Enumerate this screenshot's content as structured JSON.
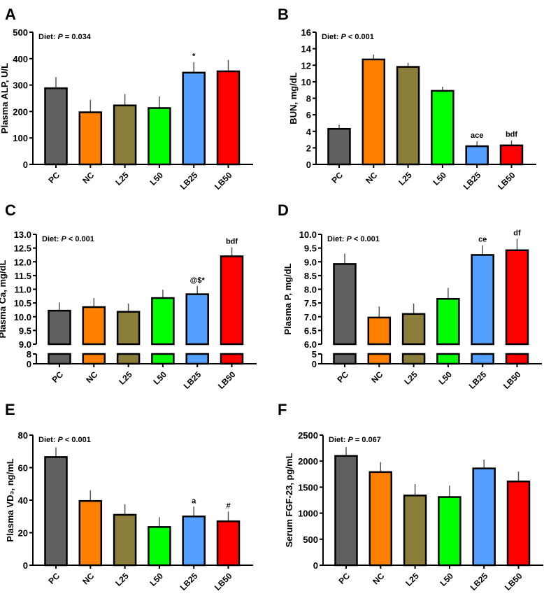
{
  "categories": [
    "PC",
    "NC",
    "L25",
    "L50",
    "LB25",
    "LB50"
  ],
  "colors": [
    "#606060",
    "#ff8000",
    "#8b7d3a",
    "#00ff00",
    "#55a0ff",
    "#ff0000"
  ],
  "chart_data": [
    {
      "type": "bar",
      "panel": "A",
      "ylabel": "Plasma ALP, U/L",
      "stat": {
        "prefix": "Diet:",
        "p": "P",
        "rest": "= 0.034"
      },
      "ylim": [
        0,
        500
      ],
      "yticks": [
        "0",
        "100",
        "200",
        "300",
        "400",
        "500"
      ],
      "values": [
        288,
        197,
        223,
        213,
        347,
        352
      ],
      "errors": [
        42,
        47,
        43,
        44,
        40,
        43
      ],
      "annotations": [
        "",
        "",
        "",
        "",
        "*",
        ""
      ]
    },
    {
      "type": "bar",
      "panel": "B",
      "ylabel": "BUN, mg/dL",
      "stat": {
        "prefix": "Diet:",
        "p": "P",
        "rest": "< 0.001"
      },
      "ylim": [
        0,
        16
      ],
      "yticks": [
        "0",
        "2",
        "4",
        "6",
        "8",
        "10",
        "12",
        "14",
        "16"
      ],
      "values": [
        4.3,
        12.7,
        11.8,
        8.9,
        2.2,
        2.3
      ],
      "errors": [
        0.5,
        0.6,
        0.5,
        0.5,
        0.6,
        0.6
      ],
      "annotations": [
        "",
        "",
        "",
        "",
        "ace",
        "bdf"
      ]
    },
    {
      "type": "bar",
      "panel": "C",
      "ylabel": "Plasma Ca, mg/dL",
      "stat": {
        "prefix": "Diet:",
        "p": "P",
        "rest": "< 0.001"
      },
      "ylim": [
        9,
        13
      ],
      "lower_ylim": [
        0,
        8
      ],
      "broken_axis": true,
      "yticks": [
        "9.0",
        "9.5",
        "10.0",
        "10.5",
        "11.0",
        "11.5",
        "12.0",
        "12.5",
        "13.0"
      ],
      "lower_yticks": [
        "0",
        "8"
      ],
      "values": [
        10.22,
        10.35,
        10.18,
        10.68,
        10.82,
        12.2
      ],
      "errors": [
        0.3,
        0.33,
        0.3,
        0.3,
        0.3,
        0.33
      ],
      "annotations": [
        "",
        "",
        "",
        "",
        "@$*",
        "bdf"
      ]
    },
    {
      "type": "bar",
      "panel": "D",
      "ylabel": "Plasma P, mg/dL",
      "stat": {
        "prefix": "Diet:",
        "p": "P",
        "rest": "< 0.001"
      },
      "ylim": [
        6,
        10
      ],
      "lower_ylim": [
        0,
        5
      ],
      "broken_axis": true,
      "yticks": [
        "6.0",
        "6.5",
        "7.0",
        "7.5",
        "8.0",
        "8.5",
        "9.0",
        "9.5",
        "10.0"
      ],
      "lower_yticks": [
        "0",
        "5"
      ],
      "values": [
        8.92,
        6.97,
        7.1,
        7.65,
        9.25,
        9.42
      ],
      "errors": [
        0.38,
        0.4,
        0.38,
        0.4,
        0.35,
        0.42
      ],
      "annotations": [
        "",
        "",
        "",
        "",
        "ce",
        "df"
      ]
    },
    {
      "type": "bar",
      "panel": "E",
      "ylabel": "Plasma VD₃, ng/mL",
      "stat": {
        "prefix": "Diet:",
        "p": "P",
        "rest": "< 0.001"
      },
      "ylim": [
        0,
        80
      ],
      "yticks": [
        "0",
        "20",
        "40",
        "60",
        "80"
      ],
      "values": [
        66.5,
        39.5,
        31,
        23.5,
        30,
        27
      ],
      "errors": [
        6,
        6.5,
        6.5,
        6,
        6,
        6
      ],
      "annotations": [
        "",
        "",
        "",
        "",
        "a",
        "#"
      ]
    },
    {
      "type": "bar",
      "panel": "F",
      "ylabel": "Serum FGF-23, pg/mL",
      "stat": {
        "prefix": "Diet:",
        "p": "P",
        "rest": "= 0.067"
      },
      "ylim": [
        0,
        2500
      ],
      "yticks": [
        "0",
        "500",
        "1000",
        "1500",
        "2000",
        "2500"
      ],
      "values": [
        2100,
        1790,
        1340,
        1310,
        1860,
        1610
      ],
      "errors": [
        170,
        190,
        220,
        220,
        170,
        190
      ],
      "annotations": [
        "",
        "",
        "",
        "",
        "",
        ""
      ]
    }
  ]
}
